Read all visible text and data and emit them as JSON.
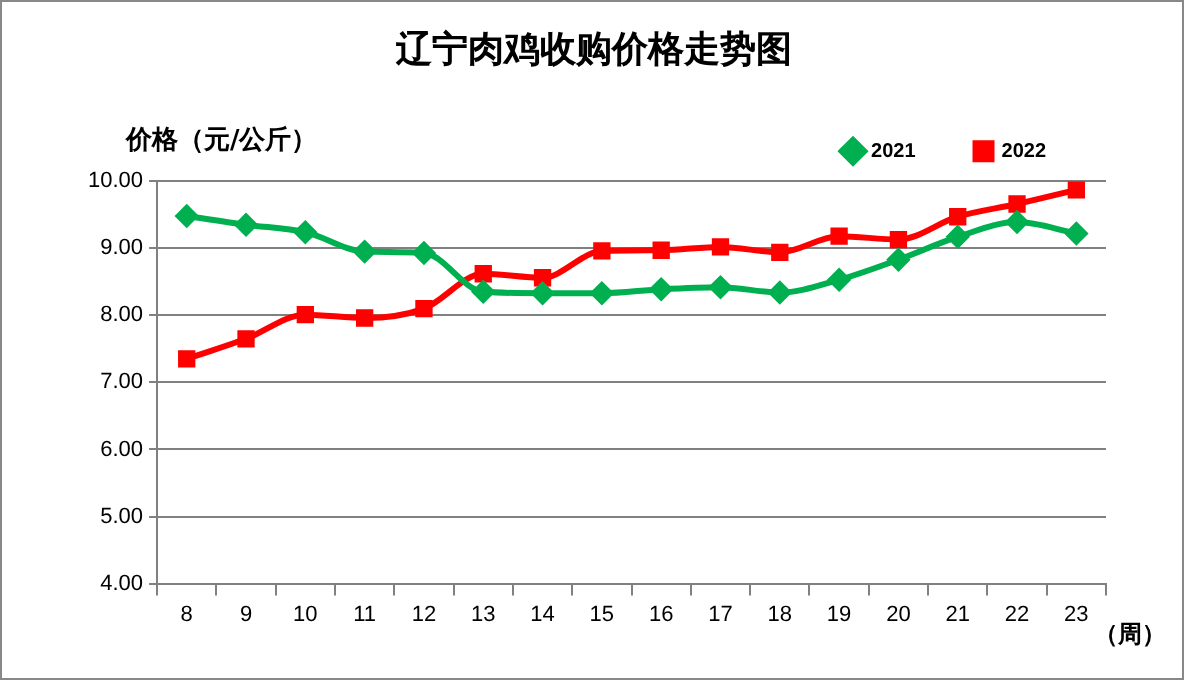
{
  "chart_data": {
    "type": "line",
    "title": "辽宁肉鸡收购价格走势图",
    "ylabel": "价格（元/公斤）",
    "xlabel": "（周）",
    "categories": [
      "8",
      "9",
      "10",
      "11",
      "12",
      "13",
      "14",
      "15",
      "16",
      "17",
      "18",
      "19",
      "20",
      "21",
      "22",
      "23"
    ],
    "series": [
      {
        "name": "2021",
        "color": "#00b050",
        "marker": "diamond",
        "values": [
          9.48,
          9.35,
          9.24,
          8.95,
          8.93,
          8.35,
          8.33,
          8.33,
          8.39,
          8.42,
          8.34,
          8.53,
          8.83,
          9.17,
          9.39,
          9.22
        ]
      },
      {
        "name": "2022",
        "color": "#ff0000",
        "marker": "square",
        "values": [
          7.35,
          7.65,
          8.01,
          7.96,
          8.1,
          8.62,
          8.56,
          8.96,
          8.97,
          9.02,
          8.94,
          9.18,
          9.13,
          9.47,
          9.66,
          9.87
        ]
      }
    ],
    "ylim": [
      4,
      10
    ],
    "yticks": [
      {
        "value": 4,
        "label": "4.00"
      },
      {
        "value": 5,
        "label": "5.00"
      },
      {
        "value": 6,
        "label": "6.00"
      },
      {
        "value": 7,
        "label": "7.00"
      },
      {
        "value": 8,
        "label": "8.00"
      },
      {
        "value": 9,
        "label": "9.00"
      },
      {
        "value": 10,
        "label": "10.00"
      }
    ],
    "grid": "y",
    "legend": "top right",
    "line_style": "solid"
  }
}
